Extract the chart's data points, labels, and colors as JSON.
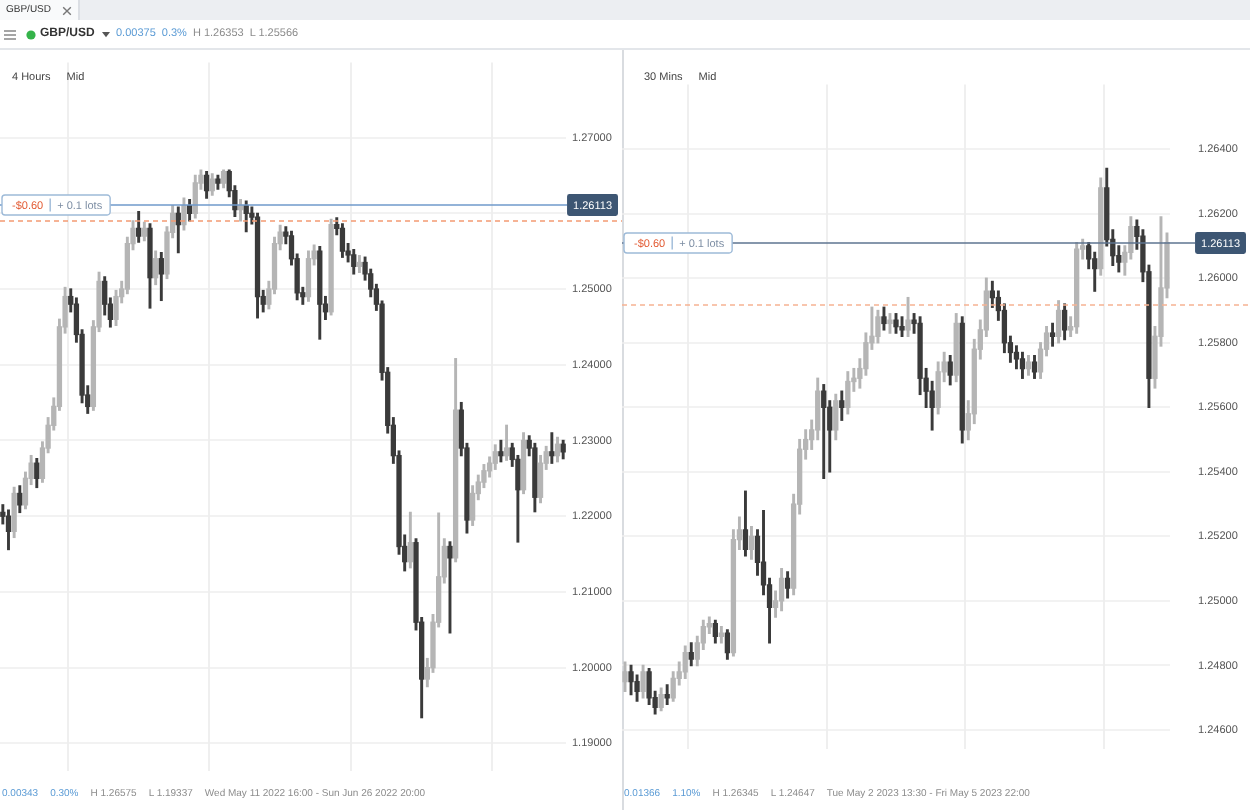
{
  "chart_data": [
    {
      "type": "other",
      "title": "GBP/USD",
      "subtitle": "GBP/USD",
      "annotations": [
        "0.00375",
        "0.3%",
        "H 1.26353",
        "L 1.25566"
      ]
    },
    {
      "type": "candlestick",
      "title": "4 Hours",
      "subtitle": "Mid",
      "categories": [
        null,
        null,
        null,
        null,
        null,
        null,
        null,
        null,
        null,
        null,
        null,
        null,
        null,
        null,
        null,
        null,
        null,
        null,
        null,
        null,
        null,
        null,
        null,
        null,
        null,
        null,
        null,
        null,
        null,
        null,
        null,
        null,
        null,
        null,
        null,
        null,
        null,
        null,
        null,
        null,
        null,
        null,
        null,
        null,
        null,
        null,
        null,
        null,
        null,
        null,
        null,
        null,
        null,
        null,
        null,
        null,
        null,
        null,
        null,
        null,
        null,
        null,
        null,
        null,
        null,
        null,
        null,
        null,
        null,
        null,
        null,
        null,
        null,
        null,
        null,
        null,
        null,
        null,
        null,
        null,
        null,
        null,
        null,
        null,
        null,
        null,
        null,
        null,
        null,
        null,
        null,
        null,
        null,
        null,
        null,
        null,
        null,
        null,
        null,
        null
      ],
      "ohlc": [
        [
          1.2205,
          1.2215,
          1.219,
          1.22
        ],
        [
          1.22,
          1.2208,
          1.2156,
          1.218
        ],
        [
          1.218,
          1.2238,
          1.2172,
          1.223
        ],
        [
          1.223,
          1.224,
          1.2205,
          1.2215
        ],
        [
          1.2215,
          1.2258,
          1.221,
          1.225
        ],
        [
          1.225,
          1.228,
          1.2242,
          1.227
        ],
        [
          1.227,
          1.2276,
          1.2238,
          1.225
        ],
        [
          1.225,
          1.2298,
          1.2245,
          1.229
        ],
        [
          1.229,
          1.233,
          1.2284,
          1.232
        ],
        [
          1.232,
          1.2356,
          1.2314,
          1.2345
        ],
        [
          1.2345,
          1.246,
          1.234,
          1.245
        ],
        [
          1.245,
          1.2502,
          1.2442,
          1.249
        ],
        [
          1.249,
          1.25,
          1.247,
          1.248
        ],
        [
          1.248,
          1.2488,
          1.243,
          1.244
        ],
        [
          1.244,
          1.2446,
          1.235,
          1.236
        ],
        [
          1.236,
          1.2372,
          1.2336,
          1.2345
        ],
        [
          1.2345,
          1.2458,
          1.234,
          1.245
        ],
        [
          1.245,
          1.2522,
          1.2444,
          1.251
        ],
        [
          1.251,
          1.2516,
          1.2466,
          1.248
        ],
        [
          1.248,
          1.2488,
          1.245,
          1.246
        ],
        [
          1.246,
          1.2498,
          1.2452,
          1.249
        ],
        [
          1.249,
          1.251,
          1.2482,
          1.25
        ],
        [
          1.25,
          1.2568,
          1.2494,
          1.256
        ],
        [
          1.256,
          1.259,
          1.2552,
          1.258
        ],
        [
          1.258,
          1.2602,
          1.2562,
          1.257
        ],
        [
          1.257,
          1.2588,
          1.2564,
          1.258
        ],
        [
          1.258,
          1.2586,
          1.2475,
          1.2515
        ],
        [
          1.2515,
          1.255,
          1.2506,
          1.254
        ],
        [
          1.254,
          1.2548,
          1.2485,
          1.252
        ],
        [
          1.252,
          1.2582,
          1.2514,
          1.2575
        ],
        [
          1.2575,
          1.261,
          1.2568,
          1.26
        ],
        [
          1.26,
          1.2608,
          1.2548,
          1.2585
        ],
        [
          1.2585,
          1.262,
          1.2578,
          1.261
        ],
        [
          1.261,
          1.2618,
          1.259,
          1.26
        ],
        [
          1.26,
          1.265,
          1.2594,
          1.264
        ],
        [
          1.264,
          1.2657,
          1.2632,
          1.265
        ],
        [
          1.265,
          1.2655,
          1.262,
          1.263
        ],
        [
          1.263,
          1.2652,
          1.2624,
          1.2645
        ],
        [
          1.2645,
          1.265,
          1.2632,
          1.264
        ],
        [
          1.264,
          1.2657,
          1.2634,
          1.2655
        ],
        [
          1.2655,
          1.2657,
          1.2622,
          1.263
        ],
        [
          1.263,
          1.2636,
          1.2596,
          1.2605
        ],
        [
          1.2605,
          1.2618,
          1.259,
          1.261
        ],
        [
          1.261,
          1.2616,
          1.2576,
          1.26
        ],
        [
          1.26,
          1.2608,
          1.2586,
          1.2595
        ],
        [
          1.2595,
          1.26,
          1.2462,
          1.249
        ],
        [
          1.249,
          1.2498,
          1.247,
          1.248
        ],
        [
          1.248,
          1.251,
          1.2474,
          1.25
        ],
        [
          1.25,
          1.2568,
          1.2494,
          1.256
        ],
        [
          1.256,
          1.2584,
          1.2552,
          1.2575
        ],
        [
          1.2575,
          1.2582,
          1.256,
          1.257
        ],
        [
          1.257,
          1.2576,
          1.2532,
          1.254
        ],
        [
          1.254,
          1.2546,
          1.2486,
          1.2495
        ],
        [
          1.2495,
          1.2502,
          1.248,
          1.249
        ],
        [
          1.249,
          1.255,
          1.2484,
          1.254
        ],
        [
          1.254,
          1.2558,
          1.2532,
          1.255
        ],
        [
          1.255,
          1.2556,
          1.2434,
          1.248
        ],
        [
          1.248,
          1.249,
          1.246,
          1.247
        ],
        [
          1.247,
          1.2592,
          1.2466,
          1.2585
        ],
        [
          1.2585,
          1.2594,
          1.2572,
          1.258
        ],
        [
          1.258,
          1.2586,
          1.2542,
          1.255
        ],
        [
          1.255,
          1.256,
          1.2536,
          1.2545
        ],
        [
          1.2545,
          1.2552,
          1.252,
          1.253
        ],
        [
          1.253,
          1.2544,
          1.2522,
          1.2535
        ],
        [
          1.2535,
          1.2542,
          1.2512,
          1.252
        ],
        [
          1.252,
          1.2526,
          1.249,
          1.25
        ],
        [
          1.25,
          1.2506,
          1.2472,
          1.248
        ],
        [
          1.248,
          1.2484,
          1.238,
          1.239
        ],
        [
          1.239,
          1.2396,
          1.231,
          1.232
        ],
        [
          1.232,
          1.233,
          1.227,
          1.228
        ],
        [
          1.228,
          1.2286,
          1.215,
          1.216
        ],
        [
          1.216,
          1.2175,
          1.2128,
          1.214
        ],
        [
          1.214,
          1.2205,
          1.2132,
          1.2165
        ],
        [
          1.2165,
          1.217,
          1.205,
          1.206
        ],
        [
          1.206,
          1.2066,
          1.1934,
          1.1985
        ],
        [
          1.1985,
          1.2012,
          1.1975,
          1.2
        ],
        [
          1.2,
          1.207,
          1.1994,
          1.206
        ],
        [
          1.206,
          1.2204,
          1.2054,
          1.212
        ],
        [
          1.212,
          1.217,
          1.2112,
          1.216
        ],
        [
          1.216,
          1.2166,
          1.2046,
          1.2145
        ],
        [
          1.2145,
          1.2408,
          1.214,
          1.234
        ],
        [
          1.234,
          1.235,
          1.228,
          1.229
        ],
        [
          1.229,
          1.2296,
          1.2178,
          1.2195
        ],
        [
          1.2195,
          1.224,
          1.2188,
          1.223
        ],
        [
          1.223,
          1.2254,
          1.2222,
          1.2245
        ],
        [
          1.2245,
          1.2268,
          1.2238,
          1.226
        ],
        [
          1.226,
          1.2278,
          1.2252,
          1.227
        ],
        [
          1.227,
          1.2294,
          1.2262,
          1.2285
        ],
        [
          1.2285,
          1.23,
          1.2272,
          1.228
        ],
        [
          1.228,
          1.232,
          1.2274,
          1.229
        ],
        [
          1.229,
          1.2296,
          1.2266,
          1.2275
        ],
        [
          1.2275,
          1.228,
          1.2166,
          1.2235
        ],
        [
          1.2235,
          1.231,
          1.223,
          1.23
        ],
        [
          1.23,
          1.2306,
          1.228,
          1.229
        ],
        [
          1.229,
          1.2296,
          1.2206,
          1.2225
        ],
        [
          1.2225,
          1.228,
          1.2218,
          1.227
        ],
        [
          1.227,
          1.2292,
          1.2262,
          1.2285
        ],
        [
          1.2285,
          1.231,
          1.227,
          1.228
        ],
        [
          1.228,
          1.2304,
          1.2272,
          1.2295
        ],
        [
          1.2295,
          1.23,
          1.2276,
          1.2285
        ]
      ],
      "colors": [
        "#3a3a3a",
        "#3a3a3a",
        "#b5b5b5",
        "#3a3a3a",
        "#b5b5b5",
        "#b5b5b5",
        "#3a3a3a",
        "#b5b5b5",
        "#b5b5b5",
        "#b5b5b5",
        "#b5b5b5",
        "#b5b5b5",
        "#3a3a3a",
        "#3a3a3a",
        "#3a3a3a",
        "#3a3a3a",
        "#b5b5b5",
        "#b5b5b5",
        "#3a3a3a",
        "#3a3a3a",
        "#b5b5b5",
        "#b5b5b5",
        "#b5b5b5",
        "#b5b5b5",
        "#3a3a3a",
        "#b5b5b5",
        "#3a3a3a",
        "#b5b5b5",
        "#3a3a3a",
        "#b5b5b5",
        "#b5b5b5",
        "#3a3a3a",
        "#b5b5b5",
        "#3a3a3a",
        "#b5b5b5",
        "#b5b5b5",
        "#3a3a3a",
        "#b5b5b5",
        "#3a3a3a",
        "#b5b5b5",
        "#3a3a3a",
        "#3a3a3a",
        "#b5b5b5",
        "#3a3a3a",
        "#3a3a3a",
        "#3a3a3a",
        "#3a3a3a",
        "#b5b5b5",
        "#b5b5b5",
        "#b5b5b5",
        "#3a3a3a",
        "#3a3a3a",
        "#3a3a3a",
        "#3a3a3a",
        "#b5b5b5",
        "#b5b5b5",
        "#3a3a3a",
        "#3a3a3a",
        "#b5b5b5",
        "#3a3a3a",
        "#3a3a3a",
        "#3a3a3a",
        "#3a3a3a",
        "#b5b5b5",
        "#3a3a3a",
        "#3a3a3a",
        "#3a3a3a",
        "#3a3a3a",
        "#3a3a3a",
        "#3a3a3a",
        "#3a3a3a",
        "#3a3a3a",
        "#b5b5b5",
        "#3a3a3a",
        "#3a3a3a",
        "#b5b5b5",
        "#b5b5b5",
        "#b5b5b5",
        "#b5b5b5",
        "#3a3a3a",
        "#b5b5b5",
        "#3a3a3a",
        "#3a3a3a",
        "#b5b5b5",
        "#b5b5b5",
        "#b5b5b5",
        "#b5b5b5",
        "#b5b5b5",
        "#3a3a3a",
        "#b5b5b5",
        "#3a3a3a",
        "#3a3a3a",
        "#b5b5b5",
        "#3a3a3a",
        "#3a3a3a",
        "#b5b5b5",
        "#b5b5b5",
        "#3a3a3a",
        "#b5b5b5",
        "#3a3a3a"
      ],
      "ylim": [
        1.1863,
        1.2799
      ],
      "yticks": [
        {
          "value": 1.19,
          "label": "1.19000"
        },
        {
          "value": 1.2,
          "label": "1.20000"
        },
        {
          "value": 1.21,
          "label": "1.21000"
        },
        {
          "value": 1.22,
          "label": "1.22000"
        },
        {
          "value": 1.23,
          "label": "1.23000"
        },
        {
          "value": 1.24,
          "label": "1.24000"
        },
        {
          "value": 1.25,
          "label": "1.25000"
        },
        {
          "value": 1.26,
          "label": null
        },
        {
          "value": 1.27,
          "label": "1.27000"
        }
      ],
      "grid": true,
      "ref_lines": [
        {
          "axis": "y",
          "value": 1.26113,
          "label": "1.26113",
          "color": "#6f9acb"
        },
        {
          "axis": "y",
          "value": 1.2592,
          "color": "#f39a73",
          "line_style": "dashed"
        }
      ],
      "annotations": [
        {
          "text": "-$0.60",
          "y": 1.26113
        },
        {
          "text": "+ 0.1 lots",
          "y": 1.26113
        },
        "0.00343",
        "0.30%",
        "H 1.26575",
        "L 1.19337",
        "Wed May 11 2022 16:00 - Sun Jun 26 2022 20:00"
      ]
    },
    {
      "type": "candlestick",
      "title": "30 Mins",
      "subtitle": "Mid",
      "categories": [
        null,
        null,
        null,
        null,
        null,
        null,
        null,
        null,
        null,
        null,
        null,
        null,
        null,
        null,
        null,
        null,
        null,
        null,
        null,
        null,
        null,
        null,
        null,
        null,
        null,
        null,
        null,
        null,
        null,
        null,
        null,
        null,
        null,
        null,
        null,
        null,
        null,
        null,
        null,
        null,
        null,
        null,
        null,
        null,
        null,
        null,
        null,
        null,
        null,
        null,
        null,
        null,
        null,
        null,
        null,
        null,
        null,
        null,
        null,
        null,
        null,
        null,
        null,
        null,
        null,
        null,
        null,
        null,
        null,
        null,
        null,
        null,
        null,
        null,
        null,
        null,
        null,
        null,
        null,
        null,
        null,
        null,
        null,
        null,
        null,
        null,
        null,
        null,
        null,
        null,
        null
      ],
      "ohlc": [
        [
          1.2475,
          1.2481,
          1.2472,
          1.2478
        ],
        [
          1.2478,
          1.248,
          1.2471,
          1.2475
        ],
        [
          1.2475,
          1.2477,
          1.2469,
          1.2472
        ],
        [
          1.2472,
          1.248,
          1.247,
          1.2478
        ],
        [
          1.2478,
          1.2479,
          1.2468,
          1.247
        ],
        [
          1.247,
          1.2472,
          1.2465,
          1.2467
        ],
        [
          1.2467,
          1.2473,
          1.2466,
          1.2471
        ],
        [
          1.2471,
          1.2474,
          1.2468,
          1.247
        ],
        [
          1.247,
          1.2478,
          1.2469,
          1.2476
        ],
        [
          1.2476,
          1.2481,
          1.2474,
          1.2478
        ],
        [
          1.2478,
          1.2486,
          1.2476,
          1.2484
        ],
        [
          1.2484,
          1.2487,
          1.248,
          1.2482
        ],
        [
          1.2482,
          1.2489,
          1.248,
          1.2487
        ],
        [
          1.2487,
          1.2494,
          1.2485,
          1.2492
        ],
        [
          1.2492,
          1.2495,
          1.249,
          1.2493
        ],
        [
          1.2493,
          1.2494,
          1.2487,
          1.2489
        ],
        [
          1.2489,
          1.2492,
          1.2487,
          1.249
        ],
        [
          1.249,
          1.2491,
          1.2482,
          1.2484
        ],
        [
          1.2484,
          1.2522,
          1.2483,
          1.2519
        ],
        [
          1.2519,
          1.2526,
          1.2516,
          1.2522
        ],
        [
          1.2522,
          1.2534,
          1.2514,
          1.2516
        ],
        [
          1.2516,
          1.2523,
          1.2513,
          1.252
        ],
        [
          1.252,
          1.2522,
          1.2508,
          1.2512
        ],
        [
          1.2512,
          1.2528,
          1.2502,
          1.2505
        ],
        [
          1.2505,
          1.2507,
          1.2487,
          1.2498
        ],
        [
          1.2498,
          1.2503,
          1.2495,
          1.25
        ],
        [
          1.25,
          1.251,
          1.2497,
          1.2507
        ],
        [
          1.2507,
          1.2509,
          1.2501,
          1.2504
        ],
        [
          1.2504,
          1.2533,
          1.2502,
          1.253
        ],
        [
          1.253,
          1.255,
          1.2527,
          1.2547
        ],
        [
          1.2547,
          1.2553,
          1.2544,
          1.255
        ],
        [
          1.255,
          1.2556,
          1.2547,
          1.2553
        ],
        [
          1.2553,
          1.2569,
          1.255,
          1.2565
        ],
        [
          1.2565,
          1.2567,
          1.2538,
          1.256
        ],
        [
          1.256,
          1.2562,
          1.254,
          1.2553
        ],
        [
          1.2553,
          1.2564,
          1.255,
          1.2562
        ],
        [
          1.2562,
          1.2565,
          1.2556,
          1.256
        ],
        [
          1.256,
          1.2571,
          1.2558,
          1.2568
        ],
        [
          1.2568,
          1.2572,
          1.2565,
          1.2569
        ],
        [
          1.2569,
          1.2575,
          1.2566,
          1.2572
        ],
        [
          1.2572,
          1.2583,
          1.257,
          1.258
        ],
        [
          1.258,
          1.2591,
          1.2578,
          1.2582
        ],
        [
          1.2582,
          1.259,
          1.258,
          1.2588
        ],
        [
          1.2588,
          1.2591,
          1.2584,
          1.2586
        ],
        [
          1.2586,
          1.2589,
          1.2583,
          1.2587
        ],
        [
          1.2587,
          1.2589,
          1.2583,
          1.2585
        ],
        [
          1.2585,
          1.2588,
          1.2582,
          1.2584
        ],
        [
          1.2584,
          1.2594,
          1.2582,
          1.2587
        ],
        [
          1.2587,
          1.2589,
          1.2583,
          1.2586
        ],
        [
          1.2586,
          1.2588,
          1.2564,
          1.2569
        ],
        [
          1.2569,
          1.2572,
          1.256,
          1.2565
        ],
        [
          1.2565,
          1.2568,
          1.2553,
          1.256
        ],
        [
          1.256,
          1.2574,
          1.2558,
          1.2571
        ],
        [
          1.2571,
          1.2577,
          1.2568,
          1.2574
        ],
        [
          1.2574,
          1.2576,
          1.2567,
          1.257
        ],
        [
          1.257,
          1.2589,
          1.2568,
          1.2586
        ],
        [
          1.2586,
          1.2588,
          1.2549,
          1.2553
        ],
        [
          1.2553,
          1.2562,
          1.255,
          1.2558
        ],
        [
          1.2558,
          1.2581,
          1.2555,
          1.2578
        ],
        [
          1.2578,
          1.2587,
          1.2575,
          1.2584
        ],
        [
          1.2584,
          1.26,
          1.2582,
          1.2596
        ],
        [
          1.2596,
          1.2599,
          1.2591,
          1.2594
        ],
        [
          1.2594,
          1.2596,
          1.2587,
          1.259
        ],
        [
          1.259,
          1.2592,
          1.2577,
          1.258
        ],
        [
          1.258,
          1.2582,
          1.2574,
          1.2577
        ],
        [
          1.2577,
          1.2579,
          1.2572,
          1.2575
        ],
        [
          1.2575,
          1.2577,
          1.2569,
          1.2572
        ],
        [
          1.2572,
          1.2576,
          1.257,
          1.2574
        ],
        [
          1.2574,
          1.2576,
          1.2569,
          1.2571
        ],
        [
          1.2571,
          1.258,
          1.2569,
          1.2578
        ],
        [
          1.2578,
          1.2585,
          1.2576,
          1.2583
        ],
        [
          1.2583,
          1.2586,
          1.2579,
          1.2582
        ],
        [
          1.2582,
          1.2593,
          1.258,
          1.259
        ],
        [
          1.259,
          1.2592,
          1.2581,
          1.2584
        ],
        [
          1.2584,
          1.2588,
          1.2582,
          1.2585
        ],
        [
          1.2585,
          1.2611,
          1.2583,
          1.2609
        ],
        [
          1.2609,
          1.2612,
          1.2606,
          1.261
        ],
        [
          1.261,
          1.2611,
          1.2603,
          1.2606
        ],
        [
          1.2606,
          1.2608,
          1.2596,
          1.2603
        ],
        [
          1.2603,
          1.2631,
          1.2601,
          1.2628
        ],
        [
          1.2628,
          1.2634,
          1.261,
          1.2612
        ],
        [
          1.2612,
          1.2615,
          1.2604,
          1.2607
        ],
        [
          1.2607,
          1.261,
          1.2602,
          1.2605
        ],
        [
          1.2605,
          1.261,
          1.2601,
          1.2608
        ],
        [
          1.2608,
          1.2619,
          1.2606,
          1.2616
        ],
        [
          1.2616,
          1.2618,
          1.2609,
          1.2613
        ],
        [
          1.2613,
          1.2615,
          1.2599,
          1.2602
        ],
        [
          1.2602,
          1.2604,
          1.256,
          1.2569
        ],
        [
          1.2569,
          1.2585,
          1.2566,
          1.2582
        ],
        [
          1.2582,
          1.2619,
          1.2579,
          1.2597
        ],
        [
          1.2597,
          1.2614,
          1.2594,
          1.2611
        ]
      ],
      "colors": [
        "#b5b5b5",
        "#3a3a3a",
        "#3a3a3a",
        "#b5b5b5",
        "#3a3a3a",
        "#3a3a3a",
        "#b5b5b5",
        "#3a3a3a",
        "#b5b5b5",
        "#b5b5b5",
        "#b5b5b5",
        "#3a3a3a",
        "#b5b5b5",
        "#b5b5b5",
        "#b5b5b5",
        "#3a3a3a",
        "#b5b5b5",
        "#3a3a3a",
        "#b5b5b5",
        "#b5b5b5",
        "#3a3a3a",
        "#b5b5b5",
        "#3a3a3a",
        "#3a3a3a",
        "#3a3a3a",
        "#b5b5b5",
        "#b5b5b5",
        "#3a3a3a",
        "#b5b5b5",
        "#b5b5b5",
        "#b5b5b5",
        "#b5b5b5",
        "#b5b5b5",
        "#3a3a3a",
        "#3a3a3a",
        "#b5b5b5",
        "#3a3a3a",
        "#b5b5b5",
        "#b5b5b5",
        "#b5b5b5",
        "#b5b5b5",
        "#b5b5b5",
        "#b5b5b5",
        "#3a3a3a",
        "#b5b5b5",
        "#3a3a3a",
        "#3a3a3a",
        "#b5b5b5",
        "#3a3a3a",
        "#3a3a3a",
        "#3a3a3a",
        "#3a3a3a",
        "#b5b5b5",
        "#b5b5b5",
        "#3a3a3a",
        "#b5b5b5",
        "#3a3a3a",
        "#b5b5b5",
        "#b5b5b5",
        "#b5b5b5",
        "#b5b5b5",
        "#3a3a3a",
        "#3a3a3a",
        "#3a3a3a",
        "#3a3a3a",
        "#3a3a3a",
        "#3a3a3a",
        "#b5b5b5",
        "#3a3a3a",
        "#b5b5b5",
        "#b5b5b5",
        "#3a3a3a",
        "#b5b5b5",
        "#3a3a3a",
        "#b5b5b5",
        "#b5b5b5",
        "#b5b5b5",
        "#3a3a3a",
        "#3a3a3a",
        "#b5b5b5",
        "#3a3a3a",
        "#3a3a3a",
        "#3a3a3a",
        "#b5b5b5",
        "#b5b5b5",
        "#3a3a3a",
        "#3a3a3a",
        "#3a3a3a",
        "#b5b5b5",
        "#b5b5b5",
        "#b5b5b5"
      ],
      "ylim": [
        1.2454,
        1.266
      ],
      "yticks": [
        {
          "value": 1.246,
          "label": "1.24600"
        },
        {
          "value": 1.248,
          "label": "1.24800"
        },
        {
          "value": 1.25,
          "label": "1.25000"
        },
        {
          "value": 1.252,
          "label": "1.25200"
        },
        {
          "value": 1.254,
          "label": "1.25400"
        },
        {
          "value": 1.256,
          "label": "1.25600"
        },
        {
          "value": 1.258,
          "label": "1.25800"
        },
        {
          "value": 1.26,
          "label": "1.26000"
        },
        {
          "value": 1.262,
          "label": "1.26200"
        },
        {
          "value": 1.264,
          "label": "1.26400"
        }
      ],
      "grid": true,
      "ref_lines": [
        {
          "axis": "y",
          "value": 1.26113,
          "label": "1.26113",
          "color": "#5e7591"
        },
        {
          "axis": "y",
          "value": 1.2592,
          "color": "#f6b393",
          "line_style": "dashed"
        }
      ],
      "annotations": [
        {
          "text": "-$0.60",
          "y": 1.26113
        },
        {
          "text": "+ 0.1 lots",
          "y": 1.26113
        },
        "0.01366",
        "1.10%",
        "H 1.26345",
        "L 1.24647",
        "Tue May 2 2023 13:30 - Fri May 5 2023 22:00"
      ]
    }
  ]
}
